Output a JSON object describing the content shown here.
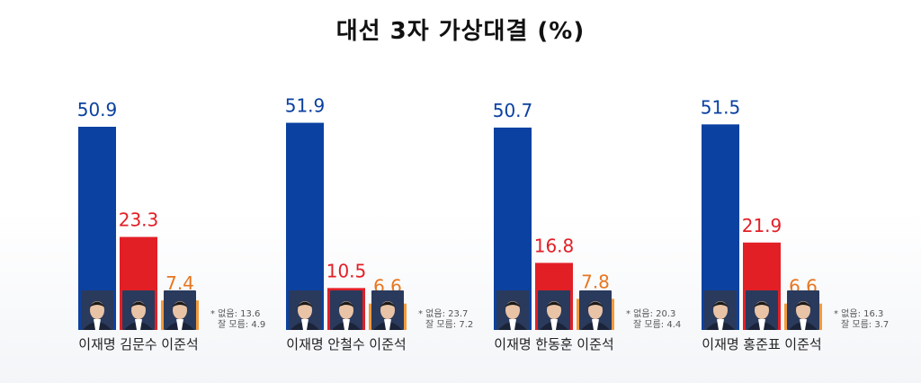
{
  "title": "대선  3자 가상대결 (%)",
  "colors": {
    "lee_jaemyung": "#0b41a0",
    "people_power": "#e31f26",
    "reform": "#f39a3c",
    "reform_label": "#e8761f",
    "photo_bg": "#2a3a5c"
  },
  "chart_data": [
    {
      "type": "bar",
      "categories": [
        "이재명",
        "김문수",
        "이준석"
      ],
      "values": [
        50.9,
        23.3,
        7.4
      ],
      "value_labels": [
        "50.9",
        "23.3",
        "7.4"
      ],
      "notes": [
        "* 없음: 13.6",
        "잘 모름: 4.9"
      ],
      "ylim": [
        0,
        60
      ]
    },
    {
      "type": "bar",
      "categories": [
        "이재명",
        "안철수",
        "이준석"
      ],
      "values": [
        51.9,
        10.5,
        6.6
      ],
      "value_labels": [
        "51.9",
        "10.5",
        "6.6"
      ],
      "notes": [
        "* 없음: 23.7",
        "잘 모름: 7.2"
      ],
      "ylim": [
        0,
        60
      ]
    },
    {
      "type": "bar",
      "categories": [
        "이재명",
        "한동훈",
        "이준석"
      ],
      "values": [
        50.7,
        16.8,
        7.8
      ],
      "value_labels": [
        "50.7",
        "16.8",
        "7.8"
      ],
      "notes": [
        "* 없음: 20.3",
        "잘 모름: 4.4"
      ],
      "ylim": [
        0,
        60
      ]
    },
    {
      "type": "bar",
      "categories": [
        "이재명",
        "홍준표",
        "이준석"
      ],
      "values": [
        51.5,
        21.9,
        6.6
      ],
      "value_labels": [
        "51.5",
        "21.9",
        "6.6"
      ],
      "notes": [
        "* 없음: 16.3",
        "잘 모름: 3.7"
      ],
      "ylim": [
        0,
        60
      ]
    }
  ]
}
